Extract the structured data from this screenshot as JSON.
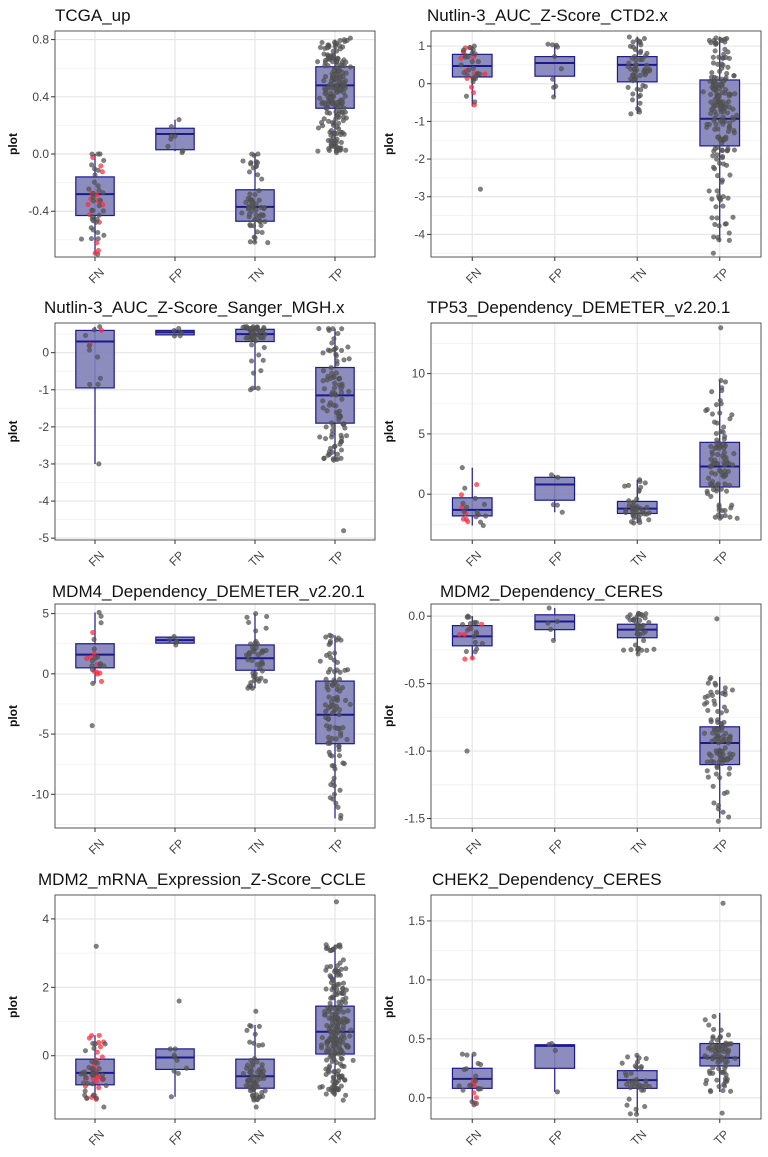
{
  "colors": {
    "box_fill": "#7f80b8",
    "box_stroke": "#1a1a8c",
    "whisker": "#1a1a8c",
    "point": "#555555",
    "highlight_point": "#ff3040",
    "grid": "#e6e6e6",
    "panel_border": "#555555"
  },
  "chart_data": [
    {
      "type": "boxplot",
      "title": "TCGA_up",
      "ylabel": "plot",
      "categories": [
        "FN",
        "FP",
        "TN",
        "TP"
      ],
      "ylim": [
        -0.72,
        0.86
      ],
      "yticks": [
        -0.4,
        0.0,
        0.4,
        0.8
      ],
      "ytick_labels": [
        "-0.4",
        "0.0",
        "0.4",
        "0.8"
      ],
      "grid": true,
      "boxes": [
        {
          "category": "FN",
          "min": -0.7,
          "q1": -0.43,
          "median": -0.28,
          "q3": -0.16,
          "max": 0.0,
          "n": 50,
          "red": 15,
          "spread": 0.22,
          "dot_min": -0.7,
          "dot_max": 0.0
        },
        {
          "category": "FP",
          "min": 0.02,
          "q1": 0.03,
          "median": 0.14,
          "q3": 0.18,
          "max": 0.24,
          "n": 8,
          "red": 0,
          "spread": 0.16,
          "dot_min": 0.01,
          "dot_max": 0.24
        },
        {
          "category": "TN",
          "min": -0.62,
          "q1": -0.47,
          "median": -0.37,
          "q3": -0.25,
          "max": 0.0,
          "n": 60,
          "red": 0,
          "spread": 0.22,
          "dot_min": -0.62,
          "dot_max": 0.0
        },
        {
          "category": "TP",
          "min": 0.02,
          "q1": 0.32,
          "median": 0.48,
          "q3": 0.61,
          "max": 0.8,
          "n": 200,
          "red": 0,
          "spread": 0.24,
          "dot_min": 0.01,
          "dot_max": 0.81
        }
      ]
    },
    {
      "type": "boxplot",
      "title": "Nutlin-3_AUC_Z-Score_CTD2.x",
      "ylabel": "plot",
      "categories": [
        "FN",
        "FP",
        "TN",
        "TP"
      ],
      "ylim": [
        -4.6,
        1.4
      ],
      "yticks": [
        -4,
        -3,
        -2,
        -1,
        0,
        1
      ],
      "ytick_labels": [
        "-4",
        "-3",
        "-2",
        "-1",
        "0",
        "1"
      ],
      "grid": true,
      "boxes": [
        {
          "category": "FN",
          "min": -0.6,
          "q1": 0.18,
          "median": 0.47,
          "q3": 0.78,
          "max": 1.0,
          "n": 40,
          "red": 14,
          "spread": 0.22,
          "dot_min": -2.8,
          "dot_max": 1.0
        },
        {
          "category": "FP",
          "min": -0.35,
          "q1": 0.2,
          "median": 0.55,
          "q3": 0.72,
          "max": 1.05,
          "n": 10,
          "red": 0,
          "spread": 0.16,
          "dot_min": -0.35,
          "dot_max": 1.05
        },
        {
          "category": "TN",
          "min": -0.8,
          "q1": 0.05,
          "median": 0.5,
          "q3": 0.72,
          "max": 1.25,
          "n": 60,
          "red": 0,
          "spread": 0.22,
          "dot_min": -0.8,
          "dot_max": 1.2
        },
        {
          "category": "TP",
          "min": -4.2,
          "q1": -1.65,
          "median": -0.93,
          "q3": 0.1,
          "max": 1.25,
          "n": 180,
          "red": 0,
          "spread": 0.24,
          "dot_min": -4.5,
          "dot_max": 1.2
        }
      ]
    },
    {
      "type": "boxplot",
      "title": "Nutlin-3_AUC_Z-Score_Sanger_MGH.x",
      "ylabel": "plot",
      "categories": [
        "FN",
        "FP",
        "TN",
        "TP"
      ],
      "ylim": [
        -5.05,
        0.8
      ],
      "yticks": [
        -5,
        -4,
        -3,
        -2,
        -1,
        0
      ],
      "ytick_labels": [
        "-5",
        "-4",
        "-3",
        "-2",
        "-1",
        "0"
      ],
      "grid": true,
      "boxes": [
        {
          "category": "FN",
          "min": -3.0,
          "q1": -0.95,
          "median": 0.3,
          "q3": 0.6,
          "max": 0.7,
          "n": 12,
          "red": 2,
          "spread": 0.18,
          "dot_min": -3.0,
          "dot_max": 0.7
        },
        {
          "category": "FP",
          "min": 0.45,
          "q1": 0.48,
          "median": 0.55,
          "q3": 0.6,
          "max": 0.65,
          "n": 5,
          "red": 0,
          "spread": 0.14,
          "dot_min": 0.45,
          "dot_max": 0.65
        },
        {
          "category": "TN",
          "min": -1.0,
          "q1": 0.3,
          "median": 0.5,
          "q3": 0.63,
          "max": 0.7,
          "n": 50,
          "red": 0,
          "spread": 0.22,
          "dot_min": -1.0,
          "dot_max": 0.7
        },
        {
          "category": "TP",
          "min": -2.9,
          "q1": -1.9,
          "median": -1.15,
          "q3": -0.4,
          "max": 0.65,
          "n": 100,
          "red": 0,
          "spread": 0.24,
          "dot_min": -4.8,
          "dot_max": 0.65
        }
      ]
    },
    {
      "type": "boxplot",
      "title": "TP53_Dependency_DEMETER_v2.20.1",
      "ylabel": "plot",
      "categories": [
        "FN",
        "FP",
        "TN",
        "TP"
      ],
      "ylim": [
        -3.8,
        14.2
      ],
      "yticks": [
        0,
        5,
        10
      ],
      "ytick_labels": [
        "0",
        "5",
        "10"
      ],
      "grid": true,
      "boxes": [
        {
          "category": "FN",
          "min": -2.6,
          "q1": -1.8,
          "median": -1.3,
          "q3": -0.3,
          "max": 2.2,
          "n": 20,
          "red": 7,
          "spread": 0.2,
          "dot_min": -2.6,
          "dot_max": 2.2
        },
        {
          "category": "FP",
          "min": -1.5,
          "q1": -0.5,
          "median": 0.8,
          "q3": 1.4,
          "max": 1.6,
          "n": 5,
          "red": 0,
          "spread": 0.14,
          "dot_min": -1.5,
          "dot_max": 1.6
        },
        {
          "category": "TN",
          "min": -2.4,
          "q1": -1.6,
          "median": -1.2,
          "q3": -0.6,
          "max": 1.2,
          "n": 40,
          "red": 0,
          "spread": 0.22,
          "dot_min": -2.4,
          "dot_max": 1.2
        },
        {
          "category": "TP",
          "min": -2.0,
          "q1": 0.6,
          "median": 2.3,
          "q3": 4.3,
          "max": 9.5,
          "n": 100,
          "red": 0,
          "spread": 0.24,
          "dot_min": -2.0,
          "dot_max": 13.8
        }
      ]
    },
    {
      "type": "boxplot",
      "title": "MDM4_Dependency_DEMETER_v2.20.1",
      "ylabel": "plot",
      "categories": [
        "FN",
        "FP",
        "TN",
        "TP"
      ],
      "ylim": [
        -12.8,
        5.8
      ],
      "yticks": [
        -10,
        -5,
        0,
        5
      ],
      "ytick_labels": [
        "-10",
        "-5",
        "0",
        "5"
      ],
      "grid": true,
      "boxes": [
        {
          "category": "FN",
          "min": -0.8,
          "q1": 0.5,
          "median": 1.6,
          "q3": 2.5,
          "max": 5.1,
          "n": 25,
          "red": 10,
          "spread": 0.2,
          "dot_min": -4.3,
          "dot_max": 5.1
        },
        {
          "category": "FP",
          "min": 2.4,
          "q1": 2.55,
          "median": 2.8,
          "q3": 3.05,
          "max": 3.1,
          "n": 5,
          "red": 0,
          "spread": 0.14,
          "dot_min": 2.4,
          "dot_max": 3.1
        },
        {
          "category": "TN",
          "min": -1.2,
          "q1": 0.3,
          "median": 1.3,
          "q3": 2.4,
          "max": 5.0,
          "n": 45,
          "red": 0,
          "spread": 0.22,
          "dot_min": -1.2,
          "dot_max": 5.0
        },
        {
          "category": "TP",
          "min": -12.0,
          "q1": -5.8,
          "median": -3.4,
          "q3": -0.6,
          "max": 3.2,
          "n": 100,
          "red": 0,
          "spread": 0.24,
          "dot_min": -12.0,
          "dot_max": 3.2
        }
      ]
    },
    {
      "type": "boxplot",
      "title": "MDM2_Dependency_CERES",
      "ylabel": "plot",
      "categories": [
        "FN",
        "FP",
        "TN",
        "TP"
      ],
      "ylim": [
        -1.57,
        0.09
      ],
      "yticks": [
        -1.5,
        -1.0,
        -0.5,
        0.0
      ],
      "ytick_labels": [
        "-1.5",
        "-1.0",
        "-0.5",
        "0.0"
      ],
      "grid": true,
      "boxes": [
        {
          "category": "FN",
          "min": -0.32,
          "q1": -0.22,
          "median": -0.15,
          "q3": -0.07,
          "max": 0.0,
          "n": 25,
          "red": 6,
          "spread": 0.2,
          "dot_min": -1.0,
          "dot_max": 0.0
        },
        {
          "category": "FP",
          "min": -0.18,
          "q1": -0.1,
          "median": -0.04,
          "q3": 0.01,
          "max": 0.06,
          "n": 5,
          "red": 0,
          "spread": 0.14,
          "dot_min": -0.18,
          "dot_max": 0.06
        },
        {
          "category": "TN",
          "min": -0.28,
          "q1": -0.16,
          "median": -0.1,
          "q3": -0.06,
          "max": 0.02,
          "n": 40,
          "red": 0,
          "spread": 0.22,
          "dot_min": -0.28,
          "dot_max": 0.02
        },
        {
          "category": "TP",
          "min": -1.5,
          "q1": -1.1,
          "median": -0.94,
          "q3": -0.82,
          "max": -0.45,
          "n": 100,
          "red": 0,
          "spread": 0.24,
          "dot_min": -1.52,
          "dot_max": -0.02
        }
      ]
    },
    {
      "type": "boxplot",
      "title": "MDM2_mRNA_Expression_Z-Score_CCLE",
      "ylabel": "plot",
      "categories": [
        "FN",
        "FP",
        "TN",
        "TP"
      ],
      "ylim": [
        -1.85,
        4.7
      ],
      "yticks": [
        0,
        2,
        4
      ],
      "ytick_labels": [
        "0",
        "2",
        "4"
      ],
      "grid": true,
      "boxes": [
        {
          "category": "FN",
          "min": -1.3,
          "q1": -0.85,
          "median": -0.5,
          "q3": -0.1,
          "max": 0.6,
          "n": 60,
          "red": 25,
          "spread": 0.22,
          "dot_min": -1.5,
          "dot_max": 3.2
        },
        {
          "category": "FP",
          "min": -1.2,
          "q1": -0.4,
          "median": -0.05,
          "q3": 0.2,
          "max": 0.2,
          "n": 10,
          "red": 0,
          "spread": 0.16,
          "dot_min": -1.2,
          "dot_max": 1.6
        },
        {
          "category": "TN",
          "min": -1.3,
          "q1": -0.95,
          "median": -0.6,
          "q3": -0.1,
          "max": 0.9,
          "n": 70,
          "red": 0,
          "spread": 0.22,
          "dot_min": -1.5,
          "dot_max": 1.3
        },
        {
          "category": "TP",
          "min": -1.2,
          "q1": 0.05,
          "median": 0.7,
          "q3": 1.45,
          "max": 3.25,
          "n": 220,
          "red": 0,
          "spread": 0.24,
          "dot_min": -1.3,
          "dot_max": 4.5
        }
      ]
    },
    {
      "type": "boxplot",
      "title": "CHEK2_Dependency_CERES",
      "ylabel": "plot",
      "categories": [
        "FN",
        "FP",
        "TN",
        "TP"
      ],
      "ylim": [
        -0.18,
        1.72
      ],
      "yticks": [
        0.0,
        0.5,
        1.0,
        1.5
      ],
      "ytick_labels": [
        "0.0",
        "0.5",
        "1.0",
        "1.5"
      ],
      "grid": true,
      "boxes": [
        {
          "category": "FN",
          "min": -0.05,
          "q1": 0.08,
          "median": 0.16,
          "q3": 0.25,
          "max": 0.37,
          "n": 25,
          "red": 6,
          "spread": 0.2,
          "dot_min": -0.06,
          "dot_max": 0.37
        },
        {
          "category": "FP",
          "min": 0.05,
          "q1": 0.25,
          "median": 0.44,
          "q3": 0.45,
          "max": 0.46,
          "n": 4,
          "red": 0,
          "spread": 0.14,
          "dot_min": 0.05,
          "dot_max": 0.46
        },
        {
          "category": "TN",
          "min": -0.14,
          "q1": 0.08,
          "median": 0.15,
          "q3": 0.23,
          "max": 0.36,
          "n": 35,
          "red": 0,
          "spread": 0.22,
          "dot_min": -0.14,
          "dot_max": 0.36
        },
        {
          "category": "TP",
          "min": 0.05,
          "q1": 0.27,
          "median": 0.34,
          "q3": 0.46,
          "max": 0.72,
          "n": 80,
          "red": 0,
          "spread": 0.24,
          "dot_min": -0.13,
          "dot_max": 1.65
        }
      ]
    }
  ]
}
